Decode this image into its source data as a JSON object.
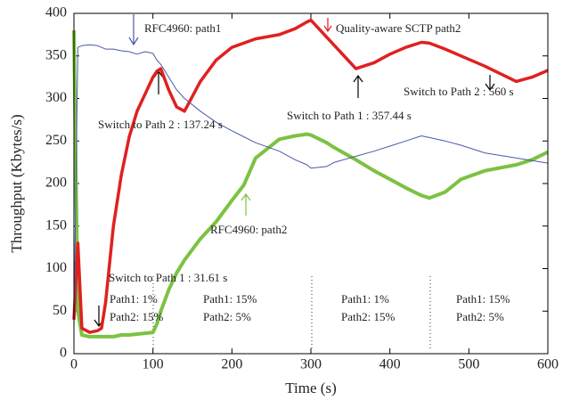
{
  "chart_data": {
    "type": "line",
    "xlabel": "Time (s)",
    "ylabel": "Throughput (Kbytes/s)",
    "x": [
      0,
      5,
      10,
      20,
      30,
      35,
      40,
      50,
      60,
      70,
      80,
      90,
      100,
      105,
      110,
      120,
      130,
      140,
      160,
      180,
      200,
      215,
      230,
      260,
      280,
      295,
      300,
      320,
      330,
      357,
      380,
      400,
      420,
      440,
      450,
      470,
      490,
      520,
      560,
      580,
      600
    ],
    "series": [
      {
        "name": "RFC4960: path1",
        "color": "#4a5aa8",
        "values": [
          30,
          360,
          362,
          363,
          362,
          360,
          358,
          358,
          356,
          355,
          352,
          355,
          353,
          345,
          340,
          325,
          310,
          300,
          285,
          272,
          262,
          255,
          248,
          238,
          228,
          222,
          218,
          220,
          225,
          232,
          238,
          244,
          250,
          256,
          254,
          250,
          245,
          236,
          230,
          227,
          224
        ]
      },
      {
        "name": "Quality-aware SCTP path2",
        "color": "#e02020",
        "values": [
          40,
          130,
          30,
          25,
          27,
          30,
          60,
          150,
          210,
          255,
          285,
          305,
          325,
          332,
          335,
          310,
          290,
          285,
          320,
          345,
          360,
          365,
          370,
          375,
          382,
          390,
          392,
          372,
          362,
          335,
          342,
          352,
          360,
          366,
          365,
          358,
          350,
          338,
          320,
          325,
          333
        ]
      },
      {
        "name": "RFC4960: path2",
        "color": "#7cc242",
        "values": [
          380,
          50,
          22,
          20,
          20,
          20,
          20,
          20,
          22,
          22,
          23,
          24,
          25,
          35,
          50,
          75,
          95,
          110,
          135,
          155,
          180,
          198,
          230,
          252,
          256,
          258,
          257,
          248,
          242,
          228,
          215,
          205,
          195,
          186,
          183,
          190,
          205,
          215,
          222,
          228,
          237
        ]
      }
    ],
    "xlim": [
      0,
      600
    ],
    "ylim": [
      0,
      400
    ],
    "xticks": [
      0,
      100,
      200,
      300,
      400,
      500,
      600
    ],
    "yticks": [
      0,
      50,
      100,
      150,
      200,
      250,
      300,
      350,
      400
    ],
    "annotations": [
      "Switch to Path 2 : 560 s",
      "Switch to Path 2 : 137.24 s",
      "Switch to Path 1 : 357.44 s",
      "Switch to Path 1 : 31.61 s"
    ],
    "regions": [
      [
        "Path1: 1%",
        "Path2: 15%"
      ],
      [
        "Path1: 15%",
        "Path2: 5%"
      ],
      [
        "Path1: 1%",
        "Path2: 15%"
      ],
      [
        "Path1: 15%",
        "Path2: 5%"
      ]
    ]
  }
}
